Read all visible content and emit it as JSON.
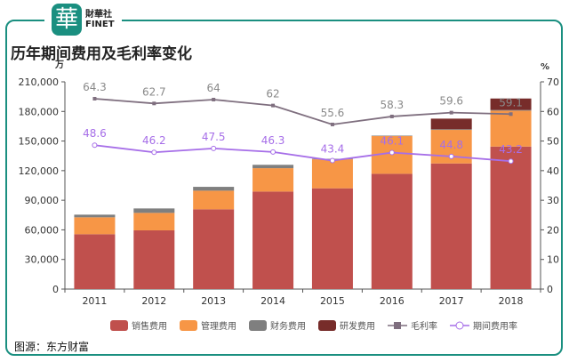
{
  "logo": {
    "mark": "華",
    "line1": "財華社",
    "line2": "FINET"
  },
  "title": "历年期间费用及毛利率变化",
  "source": "图源：东方财富",
  "chart_data": {
    "type": "bar",
    "stacked": true,
    "categories": [
      "2011",
      "2012",
      "2013",
      "2014",
      "2015",
      "2016",
      "2017",
      "2018"
    ],
    "y_left": {
      "unit": "万",
      "ylim": [
        0,
        210000
      ],
      "ticks": [
        "0",
        "30,000",
        "60,000",
        "90,000",
        "120,000",
        "150,000",
        "180,000",
        "210,000"
      ]
    },
    "y_right": {
      "unit": "%",
      "ylim": [
        0,
        70
      ],
      "ticks": [
        "0",
        "10",
        "20",
        "30",
        "40",
        "50",
        "60",
        "70"
      ]
    },
    "series": [
      {
        "name": "销售费用",
        "kind": "bar",
        "color": "#c0504d",
        "values": [
          55600,
          59500,
          80800,
          98800,
          102100,
          116800,
          127300,
          144400
        ]
      },
      {
        "name": "管理费用",
        "kind": "bar",
        "color": "#f79646",
        "values": [
          17100,
          17700,
          18900,
          23700,
          29400,
          38200,
          34000,
          36400
        ]
      },
      {
        "name": "财务费用",
        "kind": "bar",
        "color": "#7f7f7f",
        "values": [
          2700,
          4500,
          3900,
          3400,
          500,
          500,
          700,
          700
        ]
      },
      {
        "name": "研发费用",
        "kind": "bar",
        "color": "#772c2a",
        "values": [
          0,
          0,
          0,
          0,
          0,
          0,
          10700,
          11600
        ]
      },
      {
        "name": "毛利率",
        "kind": "line",
        "axis": "right",
        "color": "#7f6f7f",
        "values": [
          64.3,
          62.7,
          64,
          62,
          55.6,
          58.3,
          59.6,
          59.1
        ]
      },
      {
        "name": "期间费用率",
        "kind": "line",
        "axis": "right",
        "color": "#a66ee8",
        "values": [
          48.6,
          46.2,
          47.5,
          46.3,
          43.4,
          46.1,
          44.8,
          43.2
        ]
      }
    ],
    "grid": false,
    "legend": "bottom"
  }
}
